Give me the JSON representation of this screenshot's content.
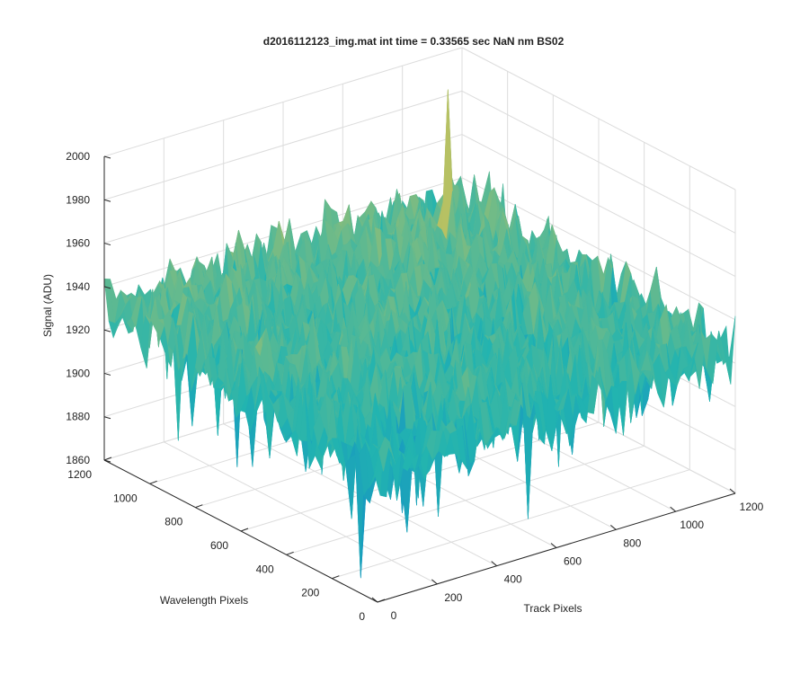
{
  "chart_data": {
    "type": "surface",
    "title": "d2016112123_img.mat int time = 0.33565 sec  NaN nm BS02",
    "xlabel": "Track Pixels",
    "ylabel": "Wavelength Pixels",
    "zlabel": "Signal (ADU)",
    "x_ticks": [
      "0",
      "200",
      "400",
      "600",
      "800",
      "1000",
      "1200"
    ],
    "y_ticks": [
      "0",
      "200",
      "400",
      "600",
      "800",
      "1000",
      "1200"
    ],
    "z_ticks": [
      "1860",
      "1880",
      "1900",
      "1920",
      "1940",
      "1960",
      "1980",
      "2000"
    ],
    "xlim": [
      0,
      1200
    ],
    "ylim": [
      0,
      1200
    ],
    "zlim": [
      1860,
      2000
    ],
    "grid": true,
    "colormap": "parula",
    "colors": {
      "low": "#0a72d8",
      "mid": "#22b4b0",
      "high": "#c9c25a",
      "axis": "#262626",
      "grid": "#dcdcdc"
    },
    "surface_description": {
      "baseline_signal": 1925,
      "noise_amplitude": 25,
      "features": [
        {
          "x": 1000,
          "y": 1000,
          "z": 1985,
          "note": "spike near back corner"
        },
        {
          "x": 1050,
          "y": 200,
          "z": 1875,
          "note": "dip near right edge"
        }
      ]
    }
  }
}
